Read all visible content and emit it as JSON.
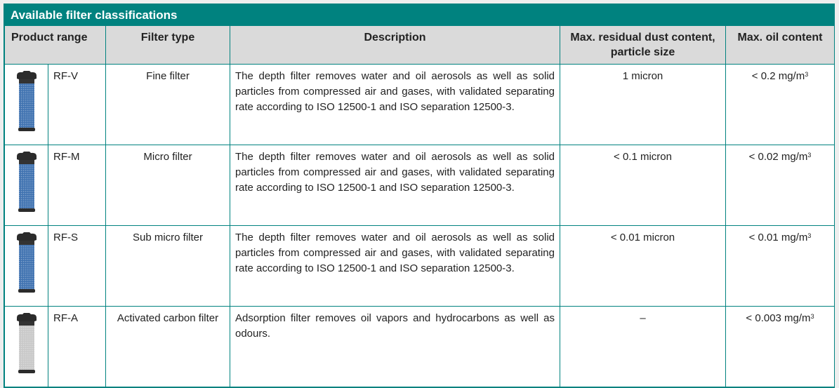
{
  "title": "Available filter classifications",
  "headers": {
    "product_range": "Product range",
    "filter_type": "Filter type",
    "description": "Description",
    "dust": "Max. residual dust content, particle size",
    "oil": "Max. oil content"
  },
  "rows": [
    {
      "code": "RF-V",
      "type": "Fine filter",
      "description": "The depth filter removes water and oil aerosols as well as solid particles from compressed air and gases, with validated separating rate according to ISO 12500-1 and ISO separation 12500-3.",
      "dust": "1 micron",
      "oil": "< 0.2 mg/m",
      "oil_sup": "3",
      "image": "blue-filter-cartridge",
      "color": "#3f72b0"
    },
    {
      "code": "RF-M",
      "type": "Micro filter",
      "description": "The depth filter removes water and oil aerosols as well as solid particles from compressed air and gases, with validated separating rate according to ISO 12500-1 and ISO separation 12500-3.",
      "dust": "< 0.1 micron",
      "oil": "< 0.02 mg/m",
      "oil_sup": "3",
      "image": "blue-filter-cartridge",
      "color": "#3f72b0"
    },
    {
      "code": "RF-S",
      "type": "Sub micro filter",
      "description": "The depth filter removes water and oil aerosols as well as solid particles from compressed air and gases, with validated separating rate according to ISO 12500-1 and ISO separation 12500-3.",
      "dust": "< 0.01 micron",
      "oil": "< 0.01 mg/m",
      "oil_sup": "3",
      "image": "blue-filter-cartridge",
      "color": "#3f72b0"
    },
    {
      "code": "RF-A",
      "type": "Activated carbon filter",
      "description": "Adsorption filter removes oil vapors and hydrocarbons as well as odours.",
      "dust": "–",
      "oil": "< 0.003 mg/m",
      "oil_sup": "3",
      "image": "grey-carbon-filter-cartridge",
      "color": "#c8c8c8"
    }
  ],
  "colors": {
    "accent": "#00827f",
    "header_bg": "#dadada"
  }
}
